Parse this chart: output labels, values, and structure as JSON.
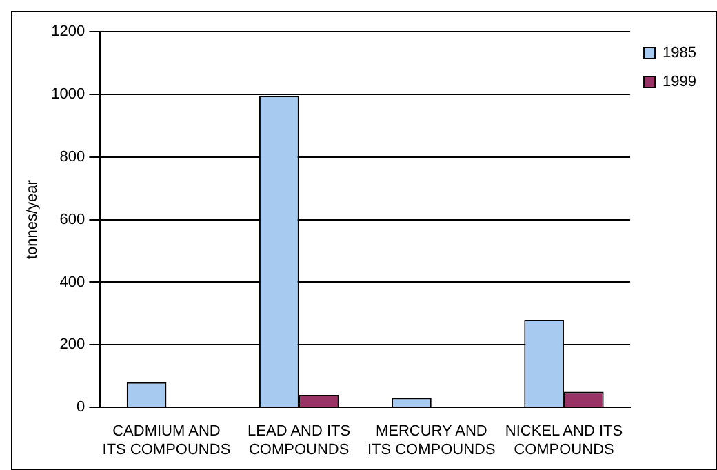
{
  "chart_data": {
    "type": "bar",
    "ylabel": "tonnes/year",
    "categories": [
      "CADMIUM AND ITS COMPOUNDS",
      "LEAD AND ITS COMPOUNDS",
      "MERCURY AND ITS COMPOUNDS",
      "NICKEL AND ITS COMPOUNDS"
    ],
    "series": [
      {
        "name": "1985",
        "color": "#a6caf0",
        "values": [
          80,
          995,
          30,
          280
        ]
      },
      {
        "name": "1999",
        "color": "#993366",
        "values": [
          0,
          40,
          0,
          50
        ]
      }
    ],
    "ylim": [
      0,
      1200
    ],
    "yticks": [
      0,
      200,
      400,
      600,
      800,
      1000,
      1200
    ],
    "grid": "y",
    "legend": "top right"
  }
}
